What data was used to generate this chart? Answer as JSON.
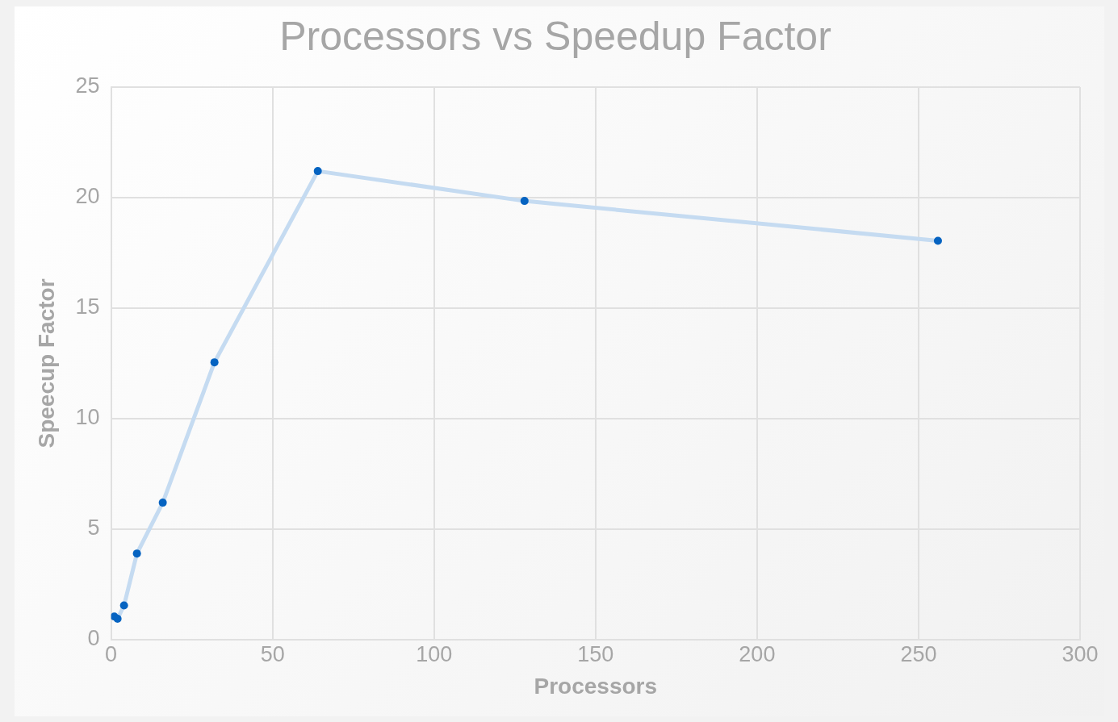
{
  "chart_data": {
    "type": "scatter",
    "title": "Processors vs Speedup Factor",
    "xlabel": "Processors",
    "ylabel": "Speecup Factor",
    "x": [
      1,
      2,
      4,
      8,
      16,
      32,
      64,
      128,
      256
    ],
    "series": [
      {
        "type": "line",
        "color": "#c5dbf1",
        "values": [
          1.05,
          0.95,
          1.55,
          3.9,
          6.2,
          12.55,
          21.2,
          19.85,
          18.05
        ],
        "marker": "none"
      },
      {
        "type": "scatter",
        "color": "#0563c1",
        "values": [
          1.05,
          0.95,
          1.55,
          3.9,
          6.2,
          12.55,
          21.2,
          19.85,
          18.05
        ],
        "marker": "circle"
      }
    ],
    "xlim": [
      0,
      300
    ],
    "xticks": [
      0,
      50,
      100,
      150,
      200,
      250,
      300
    ],
    "ylim": [
      0,
      25
    ],
    "yticks": [
      0,
      5,
      10,
      15,
      20,
      25
    ],
    "grid": true,
    "legend": false
  }
}
